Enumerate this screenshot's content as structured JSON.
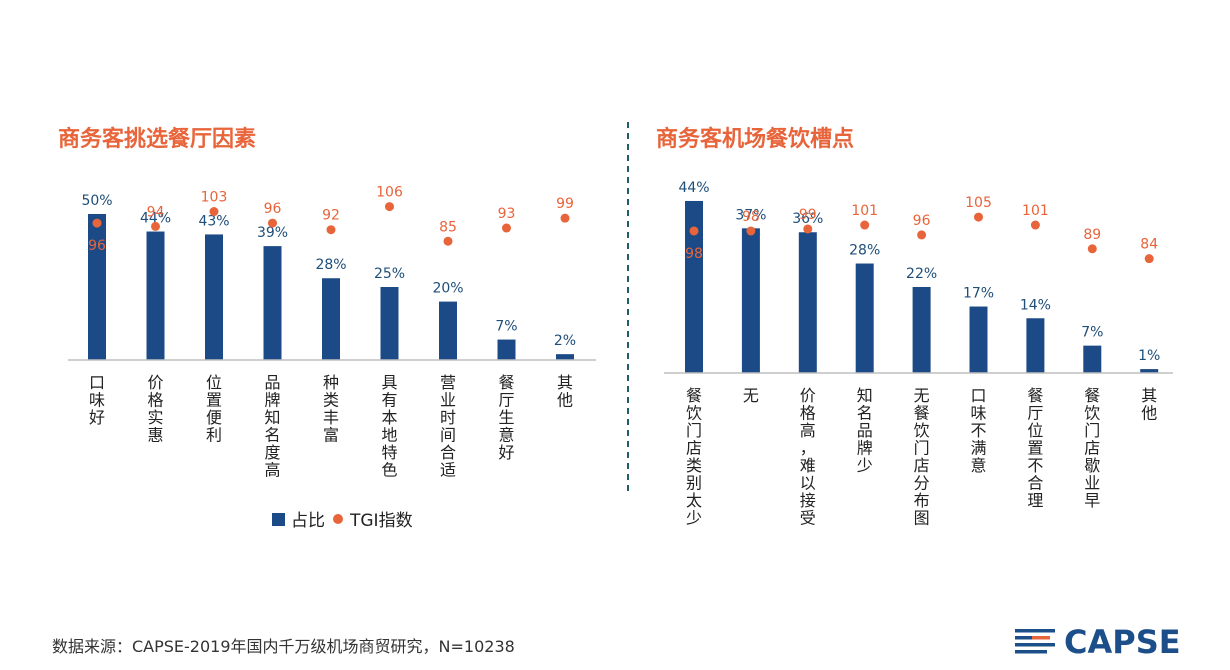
{
  "colors": {
    "bar": "#1b4a86",
    "dot": "#e8643a",
    "title": "#e8643a",
    "divider": "#1f5f6b",
    "logo": "#1c4f8a",
    "logo_accent": "#e8643a"
  },
  "legend": {
    "share_label": "占比",
    "tgi_label": "TGI指数"
  },
  "footer": {
    "source": "数据来源：CAPSE-2019年国内千万级机场商贸研究，N=10238"
  },
  "logo": {
    "text": "CAPSE"
  },
  "chart_data": [
    {
      "type": "bar",
      "title": "商务客挑选餐厅因素",
      "categories": [
        "口味好",
        "价格实惠",
        "位置便利",
        "品牌知名度高",
        "种类丰富",
        "具有本地特色",
        "营业时间合适",
        "餐厅生意好",
        "其他"
      ],
      "series": [
        {
          "name": "占比",
          "type": "bar",
          "values": [
            50,
            44,
            43,
            39,
            28,
            25,
            20,
            7,
            2
          ],
          "labels": [
            "50%",
            "44%",
            "43%",
            "39%",
            "28%",
            "25%",
            "20%",
            "7%",
            "2%"
          ]
        },
        {
          "name": "TGI指数",
          "type": "scatter",
          "values": [
            96,
            94,
            103,
            96,
            92,
            106,
            85,
            93,
            99
          ],
          "labels": [
            "96",
            "94",
            "103",
            "96",
            "92",
            "106",
            "85",
            "93",
            "99"
          ]
        }
      ],
      "legend_position": "bottom",
      "grid": false
    },
    {
      "type": "bar",
      "title": "商务客机场餐饮槽点",
      "categories": [
        "餐饮门店类别太少",
        "无",
        "价格高，难以接受",
        "知名品牌少",
        "无餐饮门店分布图",
        "口味不满意",
        "餐厅位置不合理",
        "餐饮门店歇业早",
        "其他"
      ],
      "series": [
        {
          "name": "占比",
          "type": "bar",
          "values": [
            44,
            37,
            36,
            28,
            22,
            17,
            14,
            7,
            1
          ],
          "labels": [
            "44%",
            "37%",
            "36%",
            "28%",
            "22%",
            "17%",
            "14%",
            "7%",
            "1%"
          ]
        },
        {
          "name": "TGI指数",
          "type": "scatter",
          "values": [
            98,
            98,
            99,
            101,
            96,
            105,
            101,
            89,
            84
          ],
          "labels": [
            "98",
            "98",
            "99",
            "101",
            "96",
            "105",
            "101",
            "89",
            "84"
          ]
        }
      ],
      "grid": false
    }
  ]
}
